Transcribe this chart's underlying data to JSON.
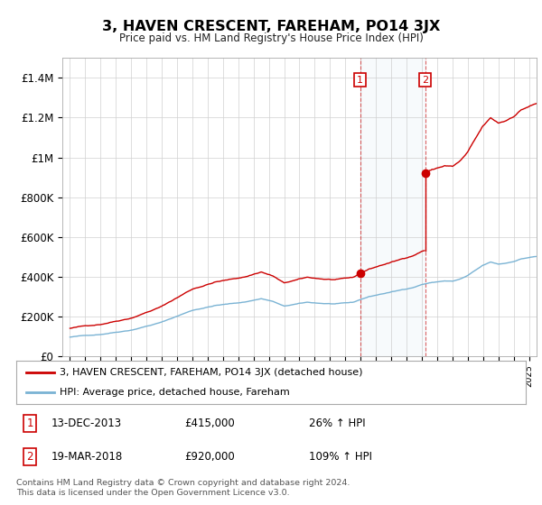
{
  "title": "3, HAVEN CRESCENT, FAREHAM, PO14 3JX",
  "subtitle": "Price paid vs. HM Land Registry's House Price Index (HPI)",
  "hpi_line_color": "#7ab3d4",
  "price_line_color": "#cc0000",
  "background_color": "#ffffff",
  "plot_bg_color": "#ffffff",
  "grid_color": "#d0d0d0",
  "ylim": [
    0,
    1500000
  ],
  "yticks": [
    0,
    200000,
    400000,
    600000,
    800000,
    1000000,
    1200000,
    1400000
  ],
  "ytick_labels": [
    "£0",
    "£200K",
    "£400K",
    "£600K",
    "£800K",
    "£1M",
    "£1.2M",
    "£1.4M"
  ],
  "sale1_date": "13-DEC-2013",
  "sale1_price": 415000,
  "sale1_label": "1",
  "sale1_year": 2013.96,
  "sale2_date": "19-MAR-2018",
  "sale2_price": 920000,
  "sale2_label": "2",
  "sale2_year": 2018.21,
  "legend_label1": "3, HAVEN CRESCENT, FAREHAM, PO14 3JX (detached house)",
  "legend_label2": "HPI: Average price, detached house, Fareham",
  "footer1": "Contains HM Land Registry data © Crown copyright and database right 2024.",
  "footer2": "This data is licensed under the Open Government Licence v3.0.",
  "table_row1": [
    "1",
    "13-DEC-2013",
    "£415,000",
    "26% ↑ HPI"
  ],
  "table_row2": [
    "2",
    "19-MAR-2018",
    "£920,000",
    "109% ↑ HPI"
  ],
  "shade_x1": 2013.96,
  "shade_x2": 2018.21,
  "xmin": 1994.5,
  "xmax": 2025.5
}
